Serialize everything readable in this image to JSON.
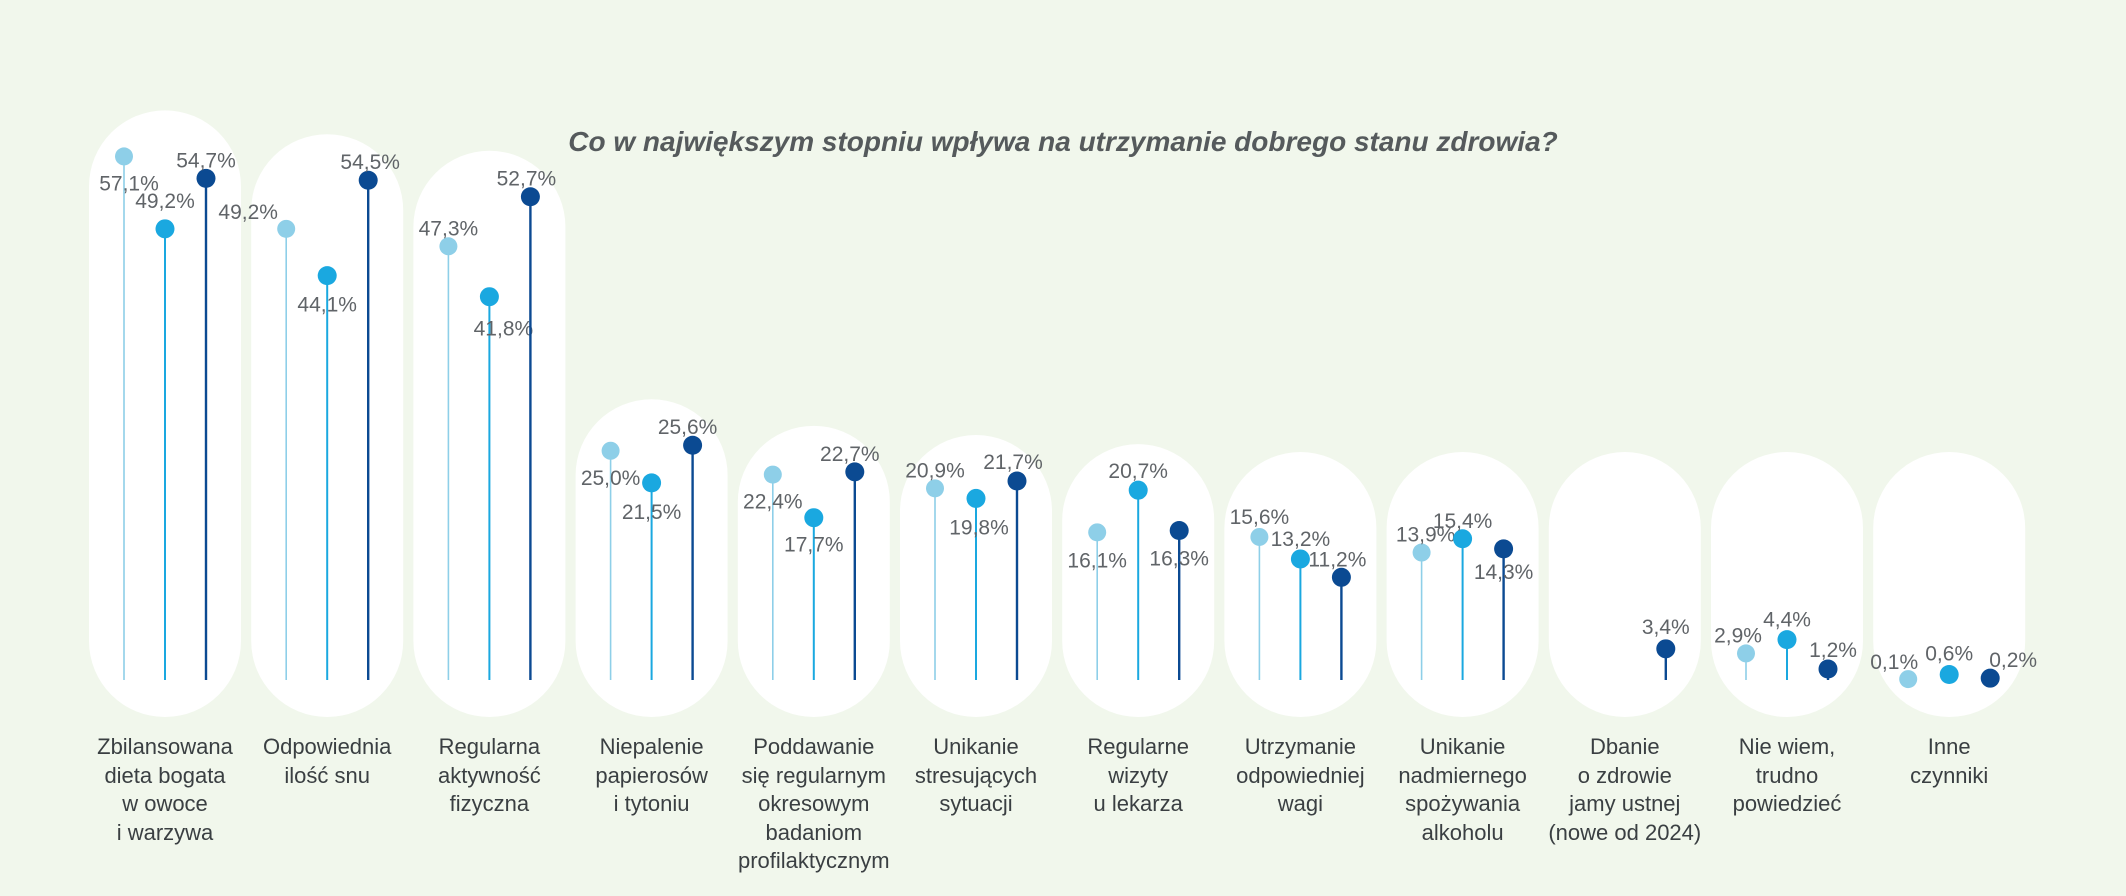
{
  "chart_data": {
    "type": "lollipop",
    "title": "Co w największym stopniu wpływa na utrzymanie dobrego stanu zdrowia?",
    "unit": "%",
    "ylim": [
      0,
      60
    ],
    "grid": false,
    "legend": "none",
    "series_colors": [
      "#8ecfe8",
      "#1aa8e0",
      "#0b4a92"
    ],
    "categories": [
      {
        "label": "Zbilansowana\ndieta bogata\nw owoce\ni warzywa",
        "values": [
          57.1,
          49.2,
          54.7
        ],
        "texts": [
          "57,1%",
          "49,2%",
          "54,7%"
        ]
      },
      {
        "label": "Odpowiednia\nilość snu",
        "values": [
          49.2,
          44.1,
          54.5
        ],
        "texts": [
          "49,2%",
          "44,1%",
          "54,5%"
        ]
      },
      {
        "label": "Regularna\naktywność\nfizyczna",
        "values": [
          47.3,
          41.8,
          52.7
        ],
        "texts": [
          "47,3%",
          "41,8%",
          "52,7%"
        ]
      },
      {
        "label": "Niepalenie\npapierosów\ni tytoniu",
        "values": [
          25.0,
          21.5,
          25.6
        ],
        "texts": [
          "25,0%",
          "21,5%",
          "25,6%"
        ]
      },
      {
        "label": "Poddawanie\nsię regularnym\nokresowym\nbadaniom\nprofilaktycznym",
        "values": [
          22.4,
          17.7,
          22.7
        ],
        "texts": [
          "22,4%",
          "17,7%",
          "22,7%"
        ]
      },
      {
        "label": "Unikanie\nstresujących\nsytuacji",
        "values": [
          20.9,
          19.8,
          21.7
        ],
        "texts": [
          "20,9%",
          "19,8%",
          "21,7%"
        ]
      },
      {
        "label": "Regularne\nwizyty\nu lekarza",
        "values": [
          16.1,
          20.7,
          16.3
        ],
        "texts": [
          "16,1%",
          "20,7%",
          "16,3%"
        ]
      },
      {
        "label": "Utrzymanie\nodpowiedniej\nwagi",
        "values": [
          15.6,
          13.2,
          11.2
        ],
        "texts": [
          "15,6%",
          "13,2%",
          "11,2%"
        ]
      },
      {
        "label": "Unikanie\nnadmiernego\nspożywania\nalkoholu",
        "values": [
          13.9,
          15.4,
          14.3
        ],
        "texts": [
          "13,9%",
          "15,4%",
          "14,3%"
        ]
      },
      {
        "label": "Dbanie\no zdrowie\njamy ustnej\n(nowe od 2024)",
        "values": [
          null,
          null,
          3.4
        ],
        "texts": [
          "",
          "",
          "3,4%"
        ]
      },
      {
        "label": "Nie wiem,\ntrudno\npowiedzieć",
        "values": [
          2.9,
          4.4,
          1.2
        ],
        "texts": [
          "2,9%",
          "4,4%",
          "1,2%"
        ]
      },
      {
        "label": "Inne\nczynniki",
        "values": [
          0.1,
          0.6,
          0.2
        ],
        "texts": [
          "0,1%",
          "0,6%",
          "0,2%"
        ]
      }
    ]
  }
}
